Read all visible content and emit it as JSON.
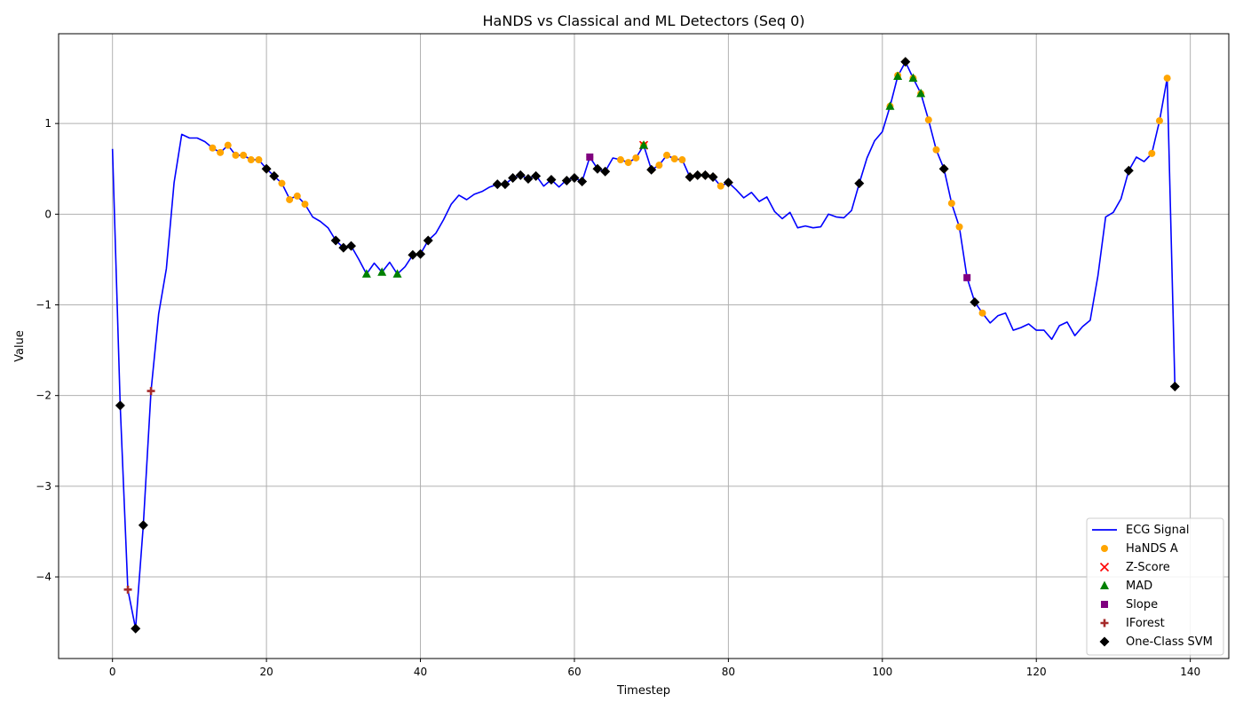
{
  "chart_data": {
    "type": "line",
    "title": "HaNDS vs Classical and ML Detectors (Seq 0)",
    "xlabel": "Timestep",
    "ylabel": "Value",
    "xlim": [
      -7,
      145
    ],
    "ylim": [
      -4.9,
      1.99
    ],
    "xticks": [
      0,
      20,
      40,
      60,
      80,
      100,
      120,
      140
    ],
    "yticks": [
      -4,
      -3,
      -2,
      -1,
      0,
      1
    ],
    "grid": true,
    "legend_position": "lower-right",
    "colors": {
      "signal": "#0000ff",
      "hands": "#ffa500",
      "zscore": "#ff0000",
      "mad": "#008000",
      "slope": "#800080",
      "iforest": "#a52a2a",
      "ocsvm": "#000000"
    },
    "series": [
      {
        "name": "ECG Signal",
        "kind": "line",
        "x": [
          0,
          1,
          2,
          3,
          4,
          5,
          6,
          7,
          8,
          9,
          10,
          11,
          12,
          13,
          14,
          15,
          16,
          17,
          18,
          19,
          20,
          21,
          22,
          23,
          24,
          25,
          26,
          27,
          28,
          29,
          30,
          31,
          32,
          33,
          34,
          35,
          36,
          37,
          38,
          39,
          40,
          41,
          42,
          43,
          44,
          45,
          46,
          47,
          48,
          49,
          50,
          51,
          52,
          53,
          54,
          55,
          56,
          57,
          58,
          59,
          60,
          61,
          62,
          63,
          64,
          65,
          66,
          67,
          68,
          69,
          70,
          71,
          72,
          73,
          74,
          75,
          76,
          77,
          78,
          79,
          80,
          81,
          82,
          83,
          84,
          85,
          86,
          87,
          88,
          89,
          90,
          91,
          92,
          93,
          94,
          95,
          96,
          97,
          98,
          99,
          100,
          101,
          102,
          103,
          104,
          105,
          106,
          107,
          108,
          109,
          110,
          111,
          112,
          113,
          114,
          115,
          116,
          117,
          118,
          119,
          120,
          121,
          122,
          123,
          124,
          125,
          126,
          127,
          128,
          129,
          130,
          131,
          132,
          133,
          134,
          135,
          136,
          137,
          138
        ],
        "y": [
          0.72,
          -2.11,
          -4.14,
          -4.57,
          -3.43,
          -1.95,
          -1.1,
          -0.6,
          0.35,
          0.88,
          0.84,
          0.84,
          0.8,
          0.73,
          0.68,
          0.76,
          0.65,
          0.65,
          0.6,
          0.6,
          0.5,
          0.42,
          0.34,
          0.17,
          0.2,
          0.11,
          -0.03,
          -0.08,
          -0.15,
          -0.29,
          -0.37,
          -0.35,
          -0.5,
          -0.66,
          -0.54,
          -0.64,
          -0.53,
          -0.66,
          -0.58,
          -0.45,
          -0.44,
          -0.29,
          -0.21,
          -0.06,
          0.11,
          0.21,
          0.16,
          0.22,
          0.25,
          0.3,
          0.33,
          0.33,
          0.4,
          0.43,
          0.39,
          0.43,
          0.31,
          0.38,
          0.3,
          0.38,
          0.4,
          0.36,
          0.63,
          0.5,
          0.47,
          0.62,
          0.6,
          0.57,
          0.62,
          0.76,
          0.49,
          0.54,
          0.65,
          0.61,
          0.6,
          0.41,
          0.43,
          0.43,
          0.41,
          0.31,
          0.35,
          0.27,
          0.18,
          0.24,
          0.14,
          0.19,
          0.03,
          -0.05,
          0.02,
          -0.15,
          -0.13,
          -0.15,
          -0.14,
          0.0,
          -0.03,
          -0.04,
          0.04,
          0.34,
          0.62,
          0.81,
          0.91,
          1.19,
          1.52,
          1.68,
          1.5,
          1.33,
          1.04,
          0.71,
          0.5,
          0.12,
          -0.14,
          -0.7,
          -0.97,
          -1.09,
          -1.2,
          -1.12,
          -1.09,
          -1.28,
          -1.25,
          -1.21,
          -1.28,
          -1.28,
          -1.38,
          -1.23,
          -1.19,
          -1.34,
          -1.24,
          -1.17,
          -0.68,
          -0.03,
          0.02,
          0.17,
          0.48,
          0.63,
          0.58,
          0.67,
          1.03,
          1.5,
          -1.9
        ]
      },
      {
        "name": "HaNDS A",
        "kind": "scatter",
        "marker": "circle",
        "x": [
          13,
          14,
          15,
          16,
          17,
          18,
          19,
          20,
          21,
          22,
          23,
          24,
          25,
          62,
          66,
          67,
          68,
          69,
          70,
          71,
          72,
          73,
          74,
          75,
          76,
          77,
          78,
          79,
          80,
          101,
          102,
          103,
          104,
          105,
          106,
          107,
          108,
          109,
          110,
          113,
          135,
          136,
          137
        ],
        "y": [
          0.73,
          0.68,
          0.76,
          0.65,
          0.65,
          0.6,
          0.6,
          0.5,
          0.42,
          0.34,
          0.16,
          0.2,
          0.11,
          0.63,
          0.6,
          0.57,
          0.62,
          0.76,
          0.49,
          0.54,
          0.65,
          0.61,
          0.6,
          0.41,
          0.43,
          0.43,
          0.41,
          0.31,
          0.35,
          1.19,
          1.53,
          1.68,
          1.5,
          1.33,
          1.04,
          0.71,
          0.5,
          0.12,
          -0.14,
          -1.09,
          0.67,
          1.03,
          1.5
        ]
      },
      {
        "name": "Z-Score",
        "kind": "scatter",
        "marker": "x",
        "x": [
          69
        ],
        "y": [
          0.76
        ]
      },
      {
        "name": "MAD",
        "kind": "scatter",
        "marker": "triangle",
        "x": [
          33,
          35,
          37,
          69,
          101,
          102,
          104,
          105
        ],
        "y": [
          -0.66,
          -0.64,
          -0.66,
          0.76,
          1.19,
          1.52,
          1.5,
          1.33
        ]
      },
      {
        "name": "Slope",
        "kind": "scatter",
        "marker": "square",
        "x": [
          62,
          111
        ],
        "y": [
          0.63,
          -0.7
        ]
      },
      {
        "name": "IForest",
        "kind": "scatter",
        "marker": "plus",
        "x": [
          2,
          5,
          138
        ],
        "y": [
          -4.14,
          -1.95,
          -1.9
        ]
      },
      {
        "name": "One-Class SVM",
        "kind": "scatter",
        "marker": "diamond",
        "x": [
          1,
          3,
          4,
          20,
          21,
          29,
          30,
          31,
          39,
          40,
          41,
          50,
          51,
          52,
          53,
          54,
          55,
          57,
          59,
          60,
          61,
          63,
          64,
          70,
          75,
          76,
          77,
          78,
          80,
          97,
          103,
          108,
          112,
          132,
          138
        ],
        "y": [
          -2.11,
          -4.57,
          -3.43,
          0.5,
          0.42,
          -0.29,
          -0.37,
          -0.35,
          -0.45,
          -0.44,
          -0.29,
          0.33,
          0.33,
          0.4,
          0.43,
          0.39,
          0.42,
          0.38,
          0.37,
          0.4,
          0.36,
          0.5,
          0.47,
          0.49,
          0.41,
          0.43,
          0.43,
          0.41,
          0.35,
          0.34,
          1.68,
          0.5,
          -0.97,
          0.48,
          -1.9
        ]
      }
    ]
  }
}
